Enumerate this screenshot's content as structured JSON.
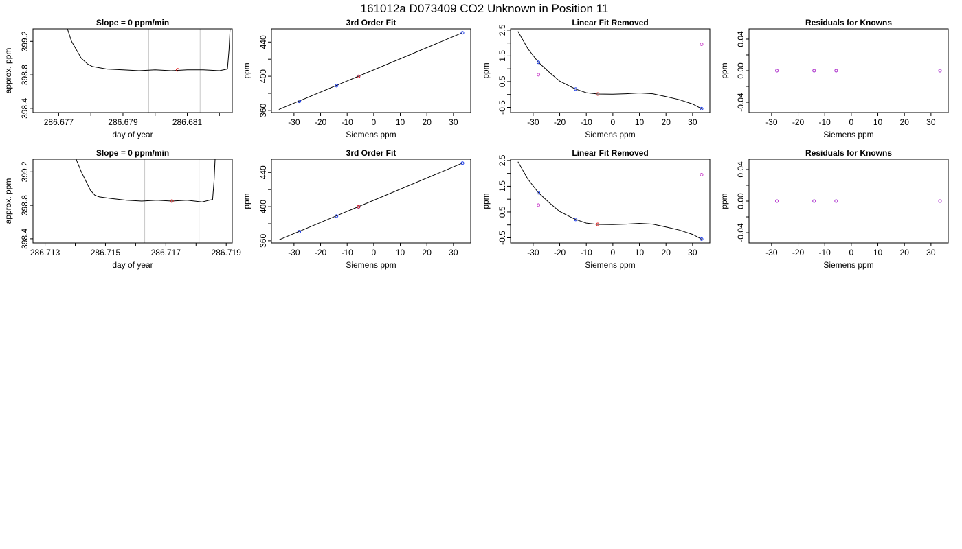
{
  "title": "161012a     D073409   CO2 Unknown in Position  11",
  "chart_data": [
    {
      "id": "r1c1",
      "type": "line",
      "title": "Slope =  0  ppm/min",
      "xlabel": "day of year",
      "ylabel": "approx. ppm",
      "xlim": [
        286.6762,
        286.6824
      ],
      "ylim": [
        398.35,
        399.35
      ],
      "xticks": [
        286.677,
        286.678,
        286.679,
        286.68,
        286.681,
        286.682
      ],
      "xtick_labels": [
        "286.677",
        "",
        "286.679",
        "",
        "286.681",
        ""
      ],
      "yticks": [
        398.4,
        398.8,
        399.2
      ],
      "ytick_labels": [
        "398.4",
        "398.8",
        "399.2"
      ],
      "vlines": [
        286.6798,
        286.6814
      ],
      "vline_color": "#c8c8c8",
      "series": [
        {
          "x": [
            286.6771,
            286.6774,
            286.6777,
            286.6779,
            286.67805,
            286.6782,
            286.6785,
            286.679,
            286.6795,
            286.68,
            286.6805,
            286.681,
            286.6815,
            286.682,
            286.68225,
            286.6823,
            286.68235
          ],
          "y": [
            399.55,
            399.2,
            399.0,
            398.93,
            398.9,
            398.89,
            398.87,
            398.86,
            398.85,
            398.86,
            398.85,
            398.86,
            398.86,
            398.85,
            398.87,
            399.1,
            399.5
          ],
          "color": "#000000"
        }
      ],
      "markers": [
        {
          "x": [
            286.6807
          ],
          "y": [
            398.86
          ],
          "color": "#e02020"
        }
      ]
    },
    {
      "id": "r1c2",
      "type": "scatter",
      "title": "3rd Order Fit",
      "xlabel": "Siemens ppm",
      "ylabel": "ppm",
      "xlim": [
        -38.5,
        36.5
      ],
      "ylim": [
        357.5,
        455.5
      ],
      "xticks": [
        -30,
        -20,
        -10,
        0,
        10,
        20,
        30
      ],
      "xtick_labels": [
        "-30",
        "-20",
        "-10",
        "0",
        "10",
        "20",
        "30"
      ],
      "yticks": [
        360,
        380,
        400,
        420,
        440
      ],
      "ytick_labels": [
        "360",
        "",
        "400",
        "",
        "440"
      ],
      "curve": {
        "x": [
          -35.7,
          33.4
        ],
        "y": [
          361.0,
          450.9
        ],
        "color": "#000000"
      },
      "series": [
        {
          "x": [
            -28,
            -14,
            -5.7,
            33.4
          ],
          "y": [
            370.7,
            388.9,
            399.7,
            450.9
          ],
          "color": "#1a3ae8"
        },
        {
          "x": [
            -5.7
          ],
          "y": [
            399.9
          ],
          "color": "#e02020"
        }
      ]
    },
    {
      "id": "r1c3",
      "type": "scatter",
      "title": "Linear Fit Removed",
      "xlabel": "Siemens ppm",
      "ylabel": "ppm",
      "xlim": [
        -38.5,
        36.5
      ],
      "ylim": [
        -0.7,
        2.55
      ],
      "xticks": [
        -30,
        -20,
        -10,
        0,
        10,
        20,
        30
      ],
      "xtick_labels": [
        "-30",
        "-20",
        "-10",
        "0",
        "10",
        "20",
        "30"
      ],
      "yticks": [
        -0.5,
        0.0,
        0.5,
        1.0,
        1.5,
        2.0,
        2.5
      ],
      "ytick_labels": [
        "-0.5",
        "",
        "0.5",
        "",
        "1.5",
        "",
        "2.5"
      ],
      "curve": {
        "x": [
          -35.7,
          -32,
          -28,
          -24,
          -20,
          -16,
          -14,
          -10,
          -5.7,
          0,
          5,
          10,
          15,
          20,
          25,
          30,
          33.4
        ],
        "y": [
          2.45,
          1.78,
          1.25,
          0.87,
          0.52,
          0.31,
          0.21,
          0.07,
          0.02,
          0.01,
          0.03,
          0.06,
          0.03,
          -0.08,
          -0.2,
          -0.37,
          -0.55
        ],
        "color": "#000000"
      },
      "series": [
        {
          "x": [
            -28,
            -14,
            33.4
          ],
          "y": [
            1.25,
            0.21,
            -0.55
          ],
          "color": "#1a3ae8"
        },
        {
          "x": [
            -28,
            33.4
          ],
          "y": [
            0.77,
            1.95
          ],
          "color": "#cc44cc"
        },
        {
          "x": [
            -5.7
          ],
          "y": [
            0.02
          ],
          "color": "#e02020"
        }
      ]
    },
    {
      "id": "r1c4",
      "type": "scatter",
      "title": "Residuals for Knowns",
      "xlabel": "Siemens ppm",
      "ylabel": "ppm",
      "xlim": [
        -38.5,
        36.5
      ],
      "ylim": [
        -0.053,
        0.053
      ],
      "xticks": [
        -30,
        -20,
        -10,
        0,
        10,
        20,
        30
      ],
      "xtick_labels": [
        "-30",
        "-20",
        "-10",
        "0",
        "10",
        "20",
        "30"
      ],
      "yticks": [
        -0.04,
        -0.02,
        0.0,
        0.02,
        0.04
      ],
      "ytick_labels": [
        "-0.04",
        "",
        "0.00",
        "",
        "0.04"
      ],
      "series": [
        {
          "x": [
            -28,
            -14,
            -5.7,
            33.4
          ],
          "y": [
            0,
            0,
            0,
            0
          ],
          "color": "#1a3ae8"
        },
        {
          "x": [
            -28,
            -14,
            -5.7,
            33.4
          ],
          "y": [
            0,
            0,
            0,
            0
          ],
          "color": "#cc44cc"
        }
      ]
    },
    {
      "id": "r2c1",
      "type": "line",
      "title": "Slope =  0  ppm/min",
      "xlabel": "day of year",
      "ylabel": "approx. ppm",
      "xlim": [
        286.7126,
        286.7192
      ],
      "ylim": [
        398.35,
        399.35
      ],
      "xticks": [
        286.713,
        286.714,
        286.715,
        286.716,
        286.717,
        286.718,
        286.719
      ],
      "xtick_labels": [
        "286.713",
        "",
        "286.715",
        "",
        "286.717",
        "",
        "286.719"
      ],
      "yticks": [
        398.4,
        398.8,
        399.2
      ],
      "ytick_labels": [
        "398.4",
        "398.8",
        "399.2"
      ],
      "vlines": [
        286.7163,
        286.7181
      ],
      "vline_color": "#c8c8c8",
      "series": [
        {
          "x": [
            286.7138,
            286.7142,
            286.7145,
            286.71465,
            286.7148,
            286.7152,
            286.7157,
            286.7162,
            286.7167,
            286.7172,
            286.7177,
            286.7182,
            286.71855,
            286.7186,
            286.71865
          ],
          "y": [
            399.55,
            399.2,
            398.98,
            398.92,
            398.9,
            398.88,
            398.86,
            398.85,
            398.86,
            398.85,
            398.86,
            398.84,
            398.87,
            399.1,
            399.5
          ],
          "color": "#000000"
        }
      ],
      "markers": [
        {
          "x": [
            286.7172
          ],
          "y": [
            398.85
          ],
          "color": "#e02020"
        }
      ]
    },
    {
      "id": "r2c2",
      "type": "scatter",
      "title": "3rd Order Fit",
      "xlabel": "Siemens ppm",
      "ylabel": "ppm",
      "xlim": [
        -38.5,
        36.5
      ],
      "ylim": [
        357.5,
        455.5
      ],
      "xticks": [
        -30,
        -20,
        -10,
        0,
        10,
        20,
        30
      ],
      "xtick_labels": [
        "-30",
        "-20",
        "-10",
        "0",
        "10",
        "20",
        "30"
      ],
      "yticks": [
        360,
        380,
        400,
        420,
        440
      ],
      "ytick_labels": [
        "360",
        "",
        "400",
        "",
        "440"
      ],
      "curve": {
        "x": [
          -35.7,
          33.4
        ],
        "y": [
          361.0,
          450.9
        ],
        "color": "#000000"
      },
      "series": [
        {
          "x": [
            -28,
            -14,
            -5.7,
            33.4
          ],
          "y": [
            370.7,
            388.9,
            399.7,
            450.9
          ],
          "color": "#1a3ae8"
        },
        {
          "x": [
            -5.7
          ],
          "y": [
            399.9
          ],
          "color": "#e02020"
        }
      ]
    },
    {
      "id": "r2c3",
      "type": "scatter",
      "title": "Linear Fit Removed",
      "xlabel": "Siemens ppm",
      "ylabel": "ppm",
      "xlim": [
        -38.5,
        36.5
      ],
      "ylim": [
        -0.7,
        2.55
      ],
      "xticks": [
        -30,
        -20,
        -10,
        0,
        10,
        20,
        30
      ],
      "xtick_labels": [
        "-30",
        "-20",
        "-10",
        "0",
        "10",
        "20",
        "30"
      ],
      "yticks": [
        -0.5,
        0.0,
        0.5,
        1.0,
        1.5,
        2.0,
        2.5
      ],
      "ytick_labels": [
        "-0.5",
        "",
        "0.5",
        "",
        "1.5",
        "",
        "2.5"
      ],
      "curve": {
        "x": [
          -35.7,
          -32,
          -28,
          -24,
          -20,
          -16,
          -14,
          -10,
          -5.7,
          0,
          5,
          10,
          15,
          20,
          25,
          30,
          33.4
        ],
        "y": [
          2.45,
          1.78,
          1.25,
          0.87,
          0.52,
          0.31,
          0.21,
          0.07,
          0.02,
          0.01,
          0.03,
          0.06,
          0.03,
          -0.08,
          -0.2,
          -0.37,
          -0.55
        ],
        "color": "#000000"
      },
      "series": [
        {
          "x": [
            -28,
            -14,
            33.4
          ],
          "y": [
            1.25,
            0.21,
            -0.55
          ],
          "color": "#1a3ae8"
        },
        {
          "x": [
            -28,
            33.4
          ],
          "y": [
            0.77,
            1.95
          ],
          "color": "#cc44cc"
        },
        {
          "x": [
            -5.7
          ],
          "y": [
            0.02
          ],
          "color": "#e02020"
        }
      ]
    },
    {
      "id": "r2c4",
      "type": "scatter",
      "title": "Residuals for Knowns",
      "xlabel": "Siemens ppm",
      "ylabel": "ppm",
      "xlim": [
        -38.5,
        36.5
      ],
      "ylim": [
        -0.053,
        0.053
      ],
      "xticks": [
        -30,
        -20,
        -10,
        0,
        10,
        20,
        30
      ],
      "xtick_labels": [
        "-30",
        "-20",
        "-10",
        "0",
        "10",
        "20",
        "30"
      ],
      "yticks": [
        -0.04,
        -0.02,
        0.0,
        0.02,
        0.04
      ],
      "ytick_labels": [
        "-0.04",
        "",
        "0.00",
        "",
        "0.04"
      ],
      "series": [
        {
          "x": [
            -28,
            -14,
            -5.7,
            33.4
          ],
          "y": [
            0,
            0,
            0,
            0
          ],
          "color": "#1a3ae8"
        },
        {
          "x": [
            -28,
            -14,
            -5.7,
            33.4
          ],
          "y": [
            0,
            0,
            0,
            0
          ],
          "color": "#cc44cc"
        }
      ]
    }
  ]
}
